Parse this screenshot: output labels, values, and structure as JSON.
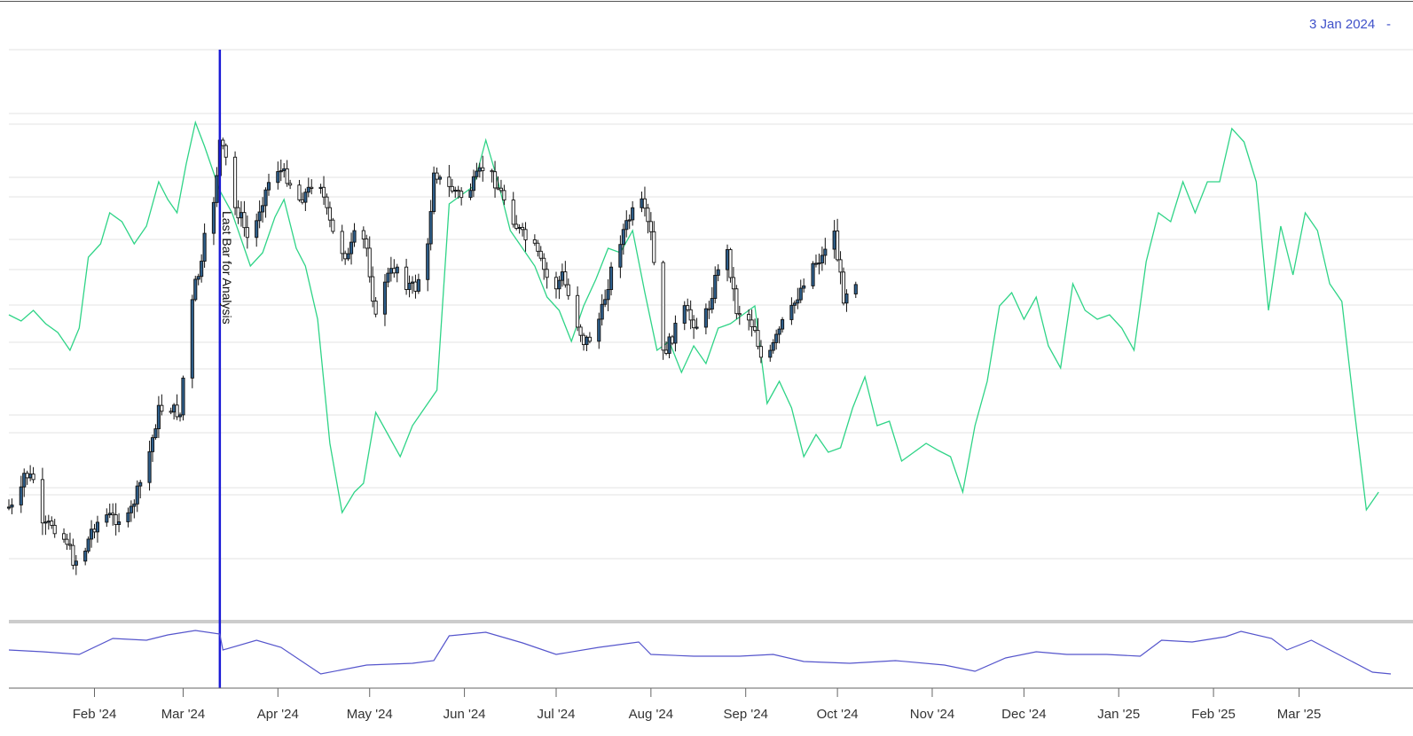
{
  "header": {
    "date_readout": "3 Jan 2024",
    "date_suffix": "-"
  },
  "marker": {
    "date": "2024-03-13",
    "label": "Last Bar for Analysis",
    "color": "#1a1ad6"
  },
  "colors": {
    "candle": "#111111",
    "candle_fill": "#2e5e8a",
    "projection": "#2fd487",
    "oscillator": "#5555cc",
    "grid": "#e3e3e3",
    "separator": "#cccccc"
  },
  "chart_data": [
    {
      "type": "candlestick",
      "title": "",
      "x_range": [
        "2024-01-04",
        "2025-03-31"
      ],
      "y_scale": "unlabeled",
      "x_ticks": [
        {
          "date": "2024-02-01",
          "label": "Feb '24"
        },
        {
          "date": "2024-03-01",
          "label": "Mar '24"
        },
        {
          "date": "2024-04-01",
          "label": "Apr '24"
        },
        {
          "date": "2024-05-01",
          "label": "May '24"
        },
        {
          "date": "2024-06-01",
          "label": "Jun '24"
        },
        {
          "date": "2024-07-01",
          "label": "Jul '24"
        },
        {
          "date": "2024-08-01",
          "label": "Aug '24"
        },
        {
          "date": "2024-09-01",
          "label": "Sep '24"
        },
        {
          "date": "2024-10-01",
          "label": "Oct '24"
        },
        {
          "date": "2024-11-01",
          "label": "Nov '24"
        },
        {
          "date": "2024-12-01",
          "label": "Dec '24"
        },
        {
          "date": "2025-01-01",
          "label": "Jan '25"
        },
        {
          "date": "2025-02-01",
          "label": "Feb '25"
        },
        {
          "date": "2025-03-01",
          "label": "Mar '25"
        }
      ],
      "price_path": [
        [
          "2024-01-04",
          572
        ],
        [
          "2024-01-07",
          575
        ],
        [
          "2024-01-09",
          535
        ],
        [
          "2024-01-12",
          540
        ],
        [
          "2024-01-14",
          598
        ],
        [
          "2024-01-18",
          590
        ],
        [
          "2024-01-21",
          605
        ],
        [
          "2024-01-23",
          610
        ],
        [
          "2024-01-25",
          632
        ],
        [
          "2024-01-28",
          630
        ],
        [
          "2024-01-31",
          598
        ],
        [
          "2024-02-04",
          580
        ],
        [
          "2024-02-08",
          585
        ],
        [
          "2024-02-12",
          585
        ],
        [
          "2024-02-16",
          545
        ],
        [
          "2024-02-19",
          510
        ],
        [
          "2024-02-22",
          462
        ],
        [
          "2024-02-26",
          460
        ],
        [
          "2024-02-29",
          468
        ],
        [
          "2024-03-02",
          385
        ],
        [
          "2024-03-05",
          320
        ],
        [
          "2024-03-07",
          300
        ],
        [
          "2024-03-09",
          240
        ],
        [
          "2024-03-11",
          225
        ],
        [
          "2024-03-12",
          195
        ],
        [
          "2024-03-13",
          160
        ],
        [
          "2024-03-15",
          180
        ],
        [
          "2024-03-17",
          230
        ],
        [
          "2024-03-20",
          245
        ],
        [
          "2024-03-23",
          280
        ],
        [
          "2024-03-26",
          235
        ],
        [
          "2024-03-29",
          205
        ],
        [
          "2024-04-01",
          190
        ],
        [
          "2024-04-04",
          200
        ],
        [
          "2024-04-08",
          225
        ],
        [
          "2024-04-11",
          215
        ],
        [
          "2024-04-14",
          190
        ],
        [
          "2024-04-17",
          240
        ],
        [
          "2024-04-20",
          275
        ],
        [
          "2024-04-24",
          290
        ],
        [
          "2024-04-27",
          255
        ],
        [
          "2024-04-30",
          280
        ],
        [
          "2024-05-03",
          360
        ],
        [
          "2024-05-06",
          315
        ],
        [
          "2024-05-10",
          300
        ],
        [
          "2024-05-13",
          320
        ],
        [
          "2024-05-16",
          325
        ],
        [
          "2024-05-20",
          280
        ],
        [
          "2024-05-22",
          190
        ],
        [
          "2024-05-25",
          210
        ],
        [
          "2024-05-29",
          215
        ],
        [
          "2024-06-01",
          225
        ],
        [
          "2024-06-05",
          200
        ],
        [
          "2024-06-08",
          185
        ],
        [
          "2024-06-11",
          205
        ],
        [
          "2024-06-15",
          230
        ],
        [
          "2024-06-18",
          255
        ],
        [
          "2024-06-21",
          270
        ],
        [
          "2024-06-24",
          280
        ],
        [
          "2024-06-27",
          305
        ],
        [
          "2024-06-30",
          330
        ],
        [
          "2024-07-03",
          310
        ],
        [
          "2024-07-06",
          345
        ],
        [
          "2024-07-10",
          385
        ],
        [
          "2024-07-13",
          380
        ],
        [
          "2024-07-16",
          350
        ],
        [
          "2024-07-20",
          290
        ],
        [
          "2024-07-23",
          260
        ],
        [
          "2024-07-26",
          240
        ],
        [
          "2024-07-29",
          230
        ],
        [
          "2024-08-01",
          265
        ],
        [
          "2024-08-03",
          330
        ],
        [
          "2024-08-05",
          400
        ],
        [
          "2024-08-08",
          380
        ],
        [
          "2024-08-11",
          345
        ],
        [
          "2024-08-14",
          360
        ],
        [
          "2024-08-17",
          370
        ],
        [
          "2024-08-20",
          345
        ],
        [
          "2024-08-23",
          300
        ],
        [
          "2024-08-26",
          285
        ],
        [
          "2024-08-29",
          350
        ],
        [
          "2024-09-01",
          355
        ],
        [
          "2024-09-04",
          370
        ],
        [
          "2024-09-07",
          420
        ],
        [
          "2024-09-10",
          390
        ],
        [
          "2024-09-13",
          365
        ],
        [
          "2024-09-16",
          350
        ],
        [
          "2024-09-19",
          325
        ],
        [
          "2024-09-22",
          300
        ],
        [
          "2024-09-26",
          290
        ],
        [
          "2024-09-28",
          265
        ],
        [
          "2024-09-30",
          262
        ],
        [
          "2024-10-01",
          290
        ],
        [
          "2024-10-03",
          335
        ],
        [
          "2024-10-05",
          320
        ],
        [
          "2024-10-07",
          315
        ]
      ]
    },
    {
      "type": "line",
      "title": "",
      "x_range": [
        "2024-01-04",
        "2025-03-31"
      ],
      "y_scale": "unlabeled",
      "projection_line": [
        [
          "2024-01-04",
          355
        ],
        [
          "2024-01-08",
          362
        ],
        [
          "2024-01-12",
          350
        ],
        [
          "2024-01-16",
          365
        ],
        [
          "2024-01-20",
          375
        ],
        [
          "2024-01-24",
          395
        ],
        [
          "2024-01-27",
          370
        ],
        [
          "2024-01-30",
          290
        ],
        [
          "2024-02-03",
          275
        ],
        [
          "2024-02-06",
          240
        ],
        [
          "2024-02-10",
          250
        ],
        [
          "2024-02-14",
          275
        ],
        [
          "2024-02-18",
          255
        ],
        [
          "2024-02-22",
          205
        ],
        [
          "2024-02-25",
          225
        ],
        [
          "2024-02-28",
          240
        ],
        [
          "2024-03-02",
          185
        ],
        [
          "2024-03-05",
          138
        ],
        [
          "2024-03-08",
          165
        ],
        [
          "2024-03-11",
          195
        ],
        [
          "2024-03-13",
          215
        ],
        [
          "2024-03-17",
          240
        ],
        [
          "2024-03-20",
          270
        ],
        [
          "2024-03-23",
          300
        ],
        [
          "2024-03-27",
          285
        ],
        [
          "2024-03-31",
          245
        ],
        [
          "2024-04-03",
          225
        ],
        [
          "2024-04-07",
          280
        ],
        [
          "2024-04-10",
          300
        ],
        [
          "2024-04-14",
          360
        ],
        [
          "2024-04-18",
          500
        ],
        [
          "2024-04-22",
          578
        ],
        [
          "2024-04-26",
          555
        ],
        [
          "2024-04-29",
          545
        ],
        [
          "2024-05-03",
          465
        ],
        [
          "2024-05-07",
          490
        ],
        [
          "2024-05-11",
          515
        ],
        [
          "2024-05-15",
          480
        ],
        [
          "2024-05-19",
          460
        ],
        [
          "2024-05-23",
          440
        ],
        [
          "2024-05-27",
          230
        ],
        [
          "2024-05-31",
          220
        ],
        [
          "2024-06-04",
          210
        ],
        [
          "2024-06-08",
          158
        ],
        [
          "2024-06-12",
          205
        ],
        [
          "2024-06-16",
          260
        ],
        [
          "2024-06-20",
          280
        ],
        [
          "2024-06-24",
          300
        ],
        [
          "2024-06-28",
          335
        ],
        [
          "2024-07-02",
          350
        ],
        [
          "2024-07-06",
          385
        ],
        [
          "2024-07-10",
          345
        ],
        [
          "2024-07-14",
          315
        ],
        [
          "2024-07-18",
          280
        ],
        [
          "2024-07-22",
          285
        ],
        [
          "2024-07-26",
          260
        ],
        [
          "2024-07-30",
          330
        ],
        [
          "2024-08-03",
          395
        ],
        [
          "2024-08-07",
          385
        ],
        [
          "2024-08-11",
          420
        ],
        [
          "2024-08-15",
          390
        ],
        [
          "2024-08-19",
          410
        ],
        [
          "2024-08-23",
          370
        ],
        [
          "2024-08-27",
          365
        ],
        [
          "2024-08-31",
          355
        ],
        [
          "2024-09-04",
          345
        ],
        [
          "2024-09-08",
          455
        ],
        [
          "2024-09-12",
          430
        ],
        [
          "2024-09-16",
          460
        ],
        [
          "2024-09-20",
          515
        ],
        [
          "2024-09-24",
          490
        ],
        [
          "2024-09-28",
          510
        ],
        [
          "2024-10-02",
          505
        ],
        [
          "2024-10-06",
          460
        ],
        [
          "2024-10-10",
          425
        ],
        [
          "2024-10-14",
          480
        ],
        [
          "2024-10-18",
          475
        ],
        [
          "2024-10-22",
          520
        ],
        [
          "2024-10-26",
          510
        ],
        [
          "2024-10-30",
          500
        ],
        [
          "2024-11-03",
          508
        ],
        [
          "2024-11-07",
          515
        ],
        [
          "2024-11-11",
          555
        ],
        [
          "2024-11-15",
          480
        ],
        [
          "2024-11-19",
          430
        ],
        [
          "2024-11-23",
          345
        ],
        [
          "2024-11-27",
          330
        ],
        [
          "2024-12-01",
          360
        ],
        [
          "2024-12-05",
          335
        ],
        [
          "2024-12-09",
          390
        ],
        [
          "2024-12-13",
          415
        ],
        [
          "2024-12-17",
          320
        ],
        [
          "2024-12-21",
          350
        ],
        [
          "2024-12-25",
          360
        ],
        [
          "2024-12-29",
          355
        ],
        [
          "2025-01-02",
          370
        ],
        [
          "2025-01-06",
          395
        ],
        [
          "2025-01-10",
          295
        ],
        [
          "2025-01-14",
          240
        ],
        [
          "2025-01-18",
          250
        ],
        [
          "2025-01-22",
          205
        ],
        [
          "2025-01-26",
          240
        ],
        [
          "2025-01-30",
          205
        ],
        [
          "2025-02-03",
          205
        ],
        [
          "2025-02-07",
          145
        ],
        [
          "2025-02-11",
          160
        ],
        [
          "2025-02-15",
          205
        ],
        [
          "2025-02-19",
          350
        ],
        [
          "2025-02-23",
          255
        ],
        [
          "2025-02-27",
          310
        ],
        [
          "2025-03-03",
          240
        ],
        [
          "2025-03-07",
          260
        ],
        [
          "2025-03-11",
          320
        ],
        [
          "2025-03-15",
          340
        ],
        [
          "2025-03-19",
          460
        ],
        [
          "2025-03-23",
          575
        ],
        [
          "2025-03-27",
          555
        ]
      ],
      "oscillator_line": [
        [
          "2024-01-04",
          733
        ],
        [
          "2024-01-15",
          735
        ],
        [
          "2024-01-27",
          738
        ],
        [
          "2024-02-07",
          720
        ],
        [
          "2024-02-18",
          722
        ],
        [
          "2024-02-25",
          716
        ],
        [
          "2024-03-05",
          711
        ],
        [
          "2024-03-13",
          715
        ],
        [
          "2024-03-14",
          733
        ],
        [
          "2024-03-25",
          722
        ],
        [
          "2024-04-02",
          730
        ],
        [
          "2024-04-15",
          760
        ],
        [
          "2024-04-30",
          750
        ],
        [
          "2024-05-15",
          748
        ],
        [
          "2024-05-22",
          745
        ],
        [
          "2024-05-27",
          717
        ],
        [
          "2024-06-08",
          713
        ],
        [
          "2024-06-20",
          725
        ],
        [
          "2024-07-01",
          738
        ],
        [
          "2024-07-15",
          730
        ],
        [
          "2024-07-28",
          724
        ],
        [
          "2024-08-01",
          738
        ],
        [
          "2024-08-15",
          740
        ],
        [
          "2024-08-30",
          740
        ],
        [
          "2024-09-10",
          738
        ],
        [
          "2024-09-20",
          746
        ],
        [
          "2024-10-05",
          748
        ],
        [
          "2024-10-20",
          745
        ],
        [
          "2024-11-05",
          750
        ],
        [
          "2024-11-15",
          757
        ],
        [
          "2024-11-25",
          742
        ],
        [
          "2024-12-05",
          735
        ],
        [
          "2024-12-15",
          738
        ],
        [
          "2024-12-28",
          738
        ],
        [
          "2025-01-08",
          740
        ],
        [
          "2025-01-15",
          722
        ],
        [
          "2025-01-25",
          724
        ],
        [
          "2025-02-05",
          718
        ],
        [
          "2025-02-10",
          712
        ],
        [
          "2025-02-20",
          720
        ],
        [
          "2025-02-25",
          733
        ],
        [
          "2025-03-05",
          722
        ],
        [
          "2025-03-15",
          740
        ],
        [
          "2025-03-25",
          758
        ],
        [
          "2025-03-31",
          760
        ]
      ]
    }
  ]
}
